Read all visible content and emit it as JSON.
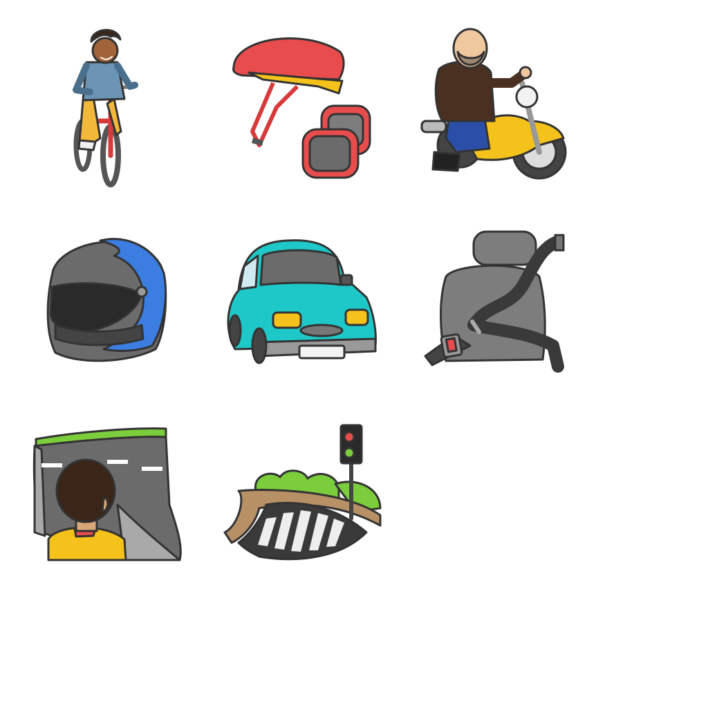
{
  "grid": {
    "background": "#ffffff",
    "tiles": [
      {
        "icon": "boy-on-bicycle-icon"
      },
      {
        "icon": "bike-helmet-and-knee-pads-icon"
      },
      {
        "icon": "man-on-motorcycle-icon"
      },
      {
        "icon": "motorcycle-helmet-icon"
      },
      {
        "icon": "car-icon"
      },
      {
        "icon": "car-seat-belt-icon"
      },
      {
        "icon": "boy-looking-at-road-icon"
      },
      {
        "icon": "crosswalk-traffic-light-icon"
      }
    ]
  },
  "colors": {
    "outline": "#333333",
    "helmet_red": "#e84c4c",
    "car_teal": "#1ec8c8",
    "moto_yellow": "#f5c21b",
    "helmet_blue": "#3b7de0",
    "grass_green": "#7ccd3c",
    "seat_grey": "#7d7d7d"
  }
}
